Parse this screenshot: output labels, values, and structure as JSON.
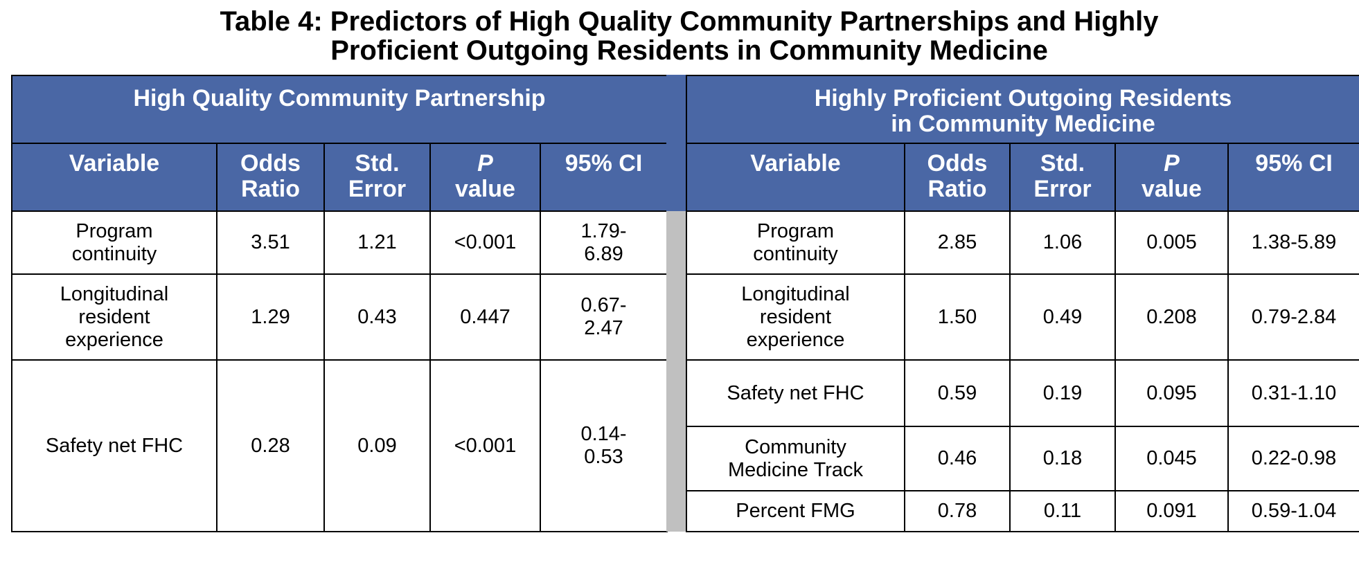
{
  "title": {
    "line1": "Table 4: Predictors of High Quality Community Partnerships and Highly",
    "line2": "Proficient Outgoing Residents in Community Medicine"
  },
  "left": {
    "group_title": "High Quality Community Partnership",
    "headers": {
      "variable": "Variable",
      "or1": "Odds",
      "or2": "Ratio",
      "se1": "Std.",
      "se2": "Error",
      "p1": "P",
      "p2": "value",
      "ci": "95% CI"
    },
    "rows": [
      {
        "var": [
          "Program",
          "continuity"
        ],
        "or": "3.51",
        "se": "1.21",
        "p": "<0.001",
        "ci": [
          "1.79-",
          "6.89"
        ]
      },
      {
        "var": [
          "Longitudinal",
          "resident",
          "experience"
        ],
        "or": "1.29",
        "se": "0.43",
        "p": "0.447",
        "ci": [
          "0.67-",
          "2.47"
        ]
      },
      {
        "var": [
          "Safety net FHC"
        ],
        "or": "0.28",
        "se": "0.09",
        "p": "<0.001",
        "ci": [
          "0.14-",
          "0.53"
        ]
      }
    ]
  },
  "right": {
    "group_title": [
      "Highly Proficient Outgoing Residents",
      "in Community Medicine"
    ],
    "headers": {
      "variable": "Variable",
      "or1": "Odds",
      "or2": "Ratio",
      "se1": "Std.",
      "se2": "Error",
      "p1": "P",
      "p2": "value",
      "ci": "95% CI"
    },
    "rows": [
      {
        "var": [
          "Program",
          "continuity"
        ],
        "or": "2.85",
        "se": "1.06",
        "p": "0.005",
        "ci": "1.38-5.89"
      },
      {
        "var": [
          "Longitudinal",
          "resident",
          "experience"
        ],
        "or": "1.50",
        "se": "0.49",
        "p": "0.208",
        "ci": "0.79-2.84"
      },
      {
        "var": [
          "Safety net FHC"
        ],
        "or": "0.59",
        "se": "0.19",
        "p": "0.095",
        "ci": "0.31-1.10"
      },
      {
        "var": [
          "Community",
          "Medicine Track"
        ],
        "or": "0.46",
        "se": "0.18",
        "p": "0.045",
        "ci": "0.22-0.98"
      },
      {
        "var": [
          "Percent FMG"
        ],
        "or": "0.78",
        "se": "0.11",
        "p": "0.091",
        "ci": "0.59-1.04"
      }
    ]
  }
}
